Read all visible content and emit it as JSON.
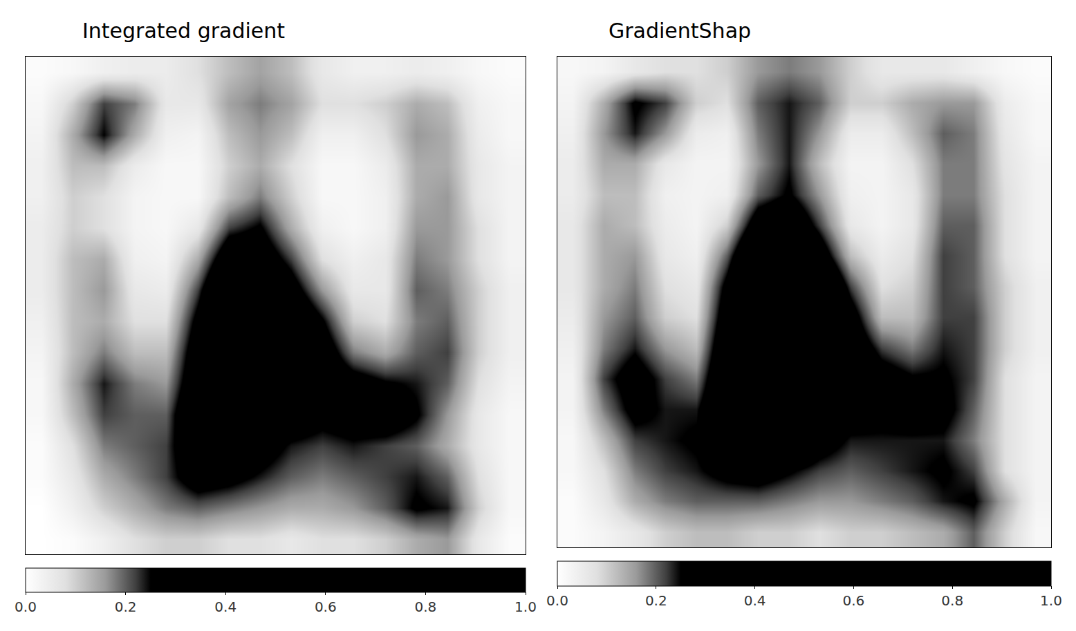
{
  "chart_data": [
    {
      "type": "heatmap",
      "title": "Integrated gradient",
      "tick_labels": false,
      "zlim": [
        0,
        1
      ],
      "zticks": [
        {
          "value": 0,
          "label": "0.0"
        },
        0.2,
        0.4,
        0.6,
        0.8,
        {
          "value": 1,
          "label": "1.0"
        }
      ],
      "cells": [
        [
          0.01,
          0.02,
          0.04,
          0.05,
          0.05,
          0.08,
          0.12,
          0.15,
          0.12,
          0.06,
          0.04,
          0.04,
          0.05,
          0.04,
          0.02,
          0.01
        ],
        [
          0.02,
          0.1,
          0.22,
          0.18,
          0.06,
          0.06,
          0.15,
          0.18,
          0.15,
          0.08,
          0.08,
          0.1,
          0.14,
          0.12,
          0.04,
          0.02
        ],
        [
          0.03,
          0.14,
          0.25,
          0.14,
          0.04,
          0.03,
          0.12,
          0.16,
          0.12,
          0.04,
          0.04,
          0.08,
          0.16,
          0.14,
          0.05,
          0.02
        ],
        [
          0.04,
          0.12,
          0.12,
          0.05,
          0.02,
          0.02,
          0.1,
          0.14,
          0.08,
          0.02,
          0.02,
          0.05,
          0.14,
          0.14,
          0.06,
          0.03
        ],
        [
          0.04,
          0.1,
          0.08,
          0.03,
          0.02,
          0.02,
          0.12,
          0.18,
          0.1,
          0.02,
          0.02,
          0.04,
          0.14,
          0.16,
          0.06,
          0.03
        ],
        [
          0.05,
          0.1,
          0.08,
          0.03,
          0.02,
          0.06,
          0.22,
          0.26,
          0.14,
          0.04,
          0.02,
          0.04,
          0.16,
          0.16,
          0.08,
          0.03
        ],
        [
          0.05,
          0.12,
          0.14,
          0.04,
          0.03,
          0.14,
          0.34,
          0.32,
          0.22,
          0.08,
          0.04,
          0.06,
          0.18,
          0.16,
          0.08,
          0.03
        ],
        [
          0.05,
          0.12,
          0.16,
          0.06,
          0.05,
          0.22,
          0.45,
          0.4,
          0.3,
          0.16,
          0.06,
          0.06,
          0.2,
          0.18,
          0.1,
          0.04
        ],
        [
          0.04,
          0.12,
          0.14,
          0.08,
          0.08,
          0.28,
          0.48,
          0.42,
          0.38,
          0.26,
          0.1,
          0.08,
          0.18,
          0.2,
          0.1,
          0.04
        ],
        [
          0.03,
          0.12,
          0.18,
          0.12,
          0.12,
          0.32,
          0.5,
          0.4,
          0.42,
          0.32,
          0.18,
          0.14,
          0.2,
          0.22,
          0.1,
          0.04
        ],
        [
          0.02,
          0.14,
          0.24,
          0.18,
          0.16,
          0.34,
          0.46,
          0.36,
          0.38,
          0.34,
          0.3,
          0.26,
          0.24,
          0.2,
          0.08,
          0.03
        ],
        [
          0.02,
          0.12,
          0.22,
          0.2,
          0.2,
          0.38,
          0.42,
          0.34,
          0.32,
          0.28,
          0.3,
          0.32,
          0.26,
          0.16,
          0.06,
          0.02
        ],
        [
          0.01,
          0.08,
          0.18,
          0.2,
          0.22,
          0.34,
          0.36,
          0.3,
          0.24,
          0.22,
          0.24,
          0.22,
          0.2,
          0.14,
          0.06,
          0.02
        ],
        [
          0.01,
          0.06,
          0.14,
          0.18,
          0.22,
          0.3,
          0.28,
          0.24,
          0.2,
          0.18,
          0.2,
          0.22,
          0.24,
          0.2,
          0.08,
          0.02
        ],
        [
          0.0,
          0.04,
          0.1,
          0.14,
          0.18,
          0.2,
          0.18,
          0.16,
          0.14,
          0.14,
          0.16,
          0.2,
          0.26,
          0.24,
          0.1,
          0.02
        ],
        [
          0.0,
          0.01,
          0.04,
          0.08,
          0.1,
          0.1,
          0.08,
          0.08,
          0.06,
          0.08,
          0.08,
          0.1,
          0.14,
          0.16,
          0.06,
          0.01
        ]
      ]
    },
    {
      "type": "heatmap",
      "title": "GradientShap",
      "tick_labels": false,
      "zlim": [
        0,
        1
      ],
      "zticks": [
        {
          "value": 0,
          "label": "0.0"
        },
        0.2,
        0.4,
        0.6,
        0.8,
        {
          "value": 1,
          "label": "1.0"
        }
      ],
      "cells": [
        [
          0.02,
          0.03,
          0.06,
          0.08,
          0.08,
          0.1,
          0.16,
          0.18,
          0.16,
          0.1,
          0.06,
          0.06,
          0.06,
          0.04,
          0.02,
          0.01
        ],
        [
          0.03,
          0.14,
          0.26,
          0.22,
          0.1,
          0.08,
          0.2,
          0.24,
          0.2,
          0.1,
          0.1,
          0.14,
          0.16,
          0.16,
          0.05,
          0.02
        ],
        [
          0.04,
          0.16,
          0.24,
          0.16,
          0.05,
          0.04,
          0.18,
          0.24,
          0.16,
          0.05,
          0.05,
          0.12,
          0.2,
          0.18,
          0.06,
          0.02
        ],
        [
          0.05,
          0.14,
          0.14,
          0.06,
          0.03,
          0.03,
          0.16,
          0.24,
          0.12,
          0.03,
          0.03,
          0.08,
          0.18,
          0.18,
          0.07,
          0.03
        ],
        [
          0.05,
          0.12,
          0.12,
          0.04,
          0.03,
          0.04,
          0.2,
          0.26,
          0.16,
          0.04,
          0.03,
          0.06,
          0.18,
          0.18,
          0.08,
          0.03
        ],
        [
          0.06,
          0.14,
          0.12,
          0.05,
          0.03,
          0.1,
          0.32,
          0.36,
          0.22,
          0.06,
          0.03,
          0.06,
          0.2,
          0.2,
          0.08,
          0.03
        ],
        [
          0.06,
          0.14,
          0.16,
          0.06,
          0.04,
          0.2,
          0.45,
          0.5,
          0.32,
          0.12,
          0.05,
          0.08,
          0.22,
          0.2,
          0.08,
          0.03
        ],
        [
          0.06,
          0.14,
          0.18,
          0.08,
          0.06,
          0.28,
          0.55,
          0.6,
          0.45,
          0.22,
          0.08,
          0.1,
          0.22,
          0.2,
          0.1,
          0.04
        ],
        [
          0.05,
          0.16,
          0.2,
          0.1,
          0.08,
          0.32,
          0.6,
          0.62,
          0.52,
          0.3,
          0.12,
          0.12,
          0.22,
          0.22,
          0.1,
          0.04
        ],
        [
          0.04,
          0.18,
          0.24,
          0.16,
          0.12,
          0.36,
          0.62,
          0.64,
          0.55,
          0.34,
          0.22,
          0.18,
          0.24,
          0.22,
          0.1,
          0.04
        ],
        [
          0.03,
          0.22,
          0.3,
          0.22,
          0.18,
          0.38,
          0.62,
          0.6,
          0.5,
          0.36,
          0.3,
          0.26,
          0.26,
          0.22,
          0.08,
          0.03
        ],
        [
          0.03,
          0.18,
          0.28,
          0.24,
          0.24,
          0.38,
          0.58,
          0.52,
          0.42,
          0.3,
          0.28,
          0.3,
          0.28,
          0.2,
          0.08,
          0.03
        ],
        [
          0.02,
          0.12,
          0.22,
          0.24,
          0.26,
          0.34,
          0.44,
          0.4,
          0.3,
          0.24,
          0.24,
          0.24,
          0.24,
          0.18,
          0.08,
          0.03
        ],
        [
          0.02,
          0.08,
          0.18,
          0.22,
          0.24,
          0.28,
          0.3,
          0.26,
          0.22,
          0.2,
          0.22,
          0.24,
          0.26,
          0.22,
          0.08,
          0.03
        ],
        [
          0.01,
          0.06,
          0.14,
          0.18,
          0.2,
          0.2,
          0.2,
          0.18,
          0.16,
          0.16,
          0.18,
          0.2,
          0.24,
          0.26,
          0.14,
          0.03
        ],
        [
          0.01,
          0.03,
          0.06,
          0.1,
          0.12,
          0.12,
          0.1,
          0.1,
          0.08,
          0.1,
          0.1,
          0.12,
          0.14,
          0.2,
          0.1,
          0.02
        ]
      ]
    }
  ]
}
